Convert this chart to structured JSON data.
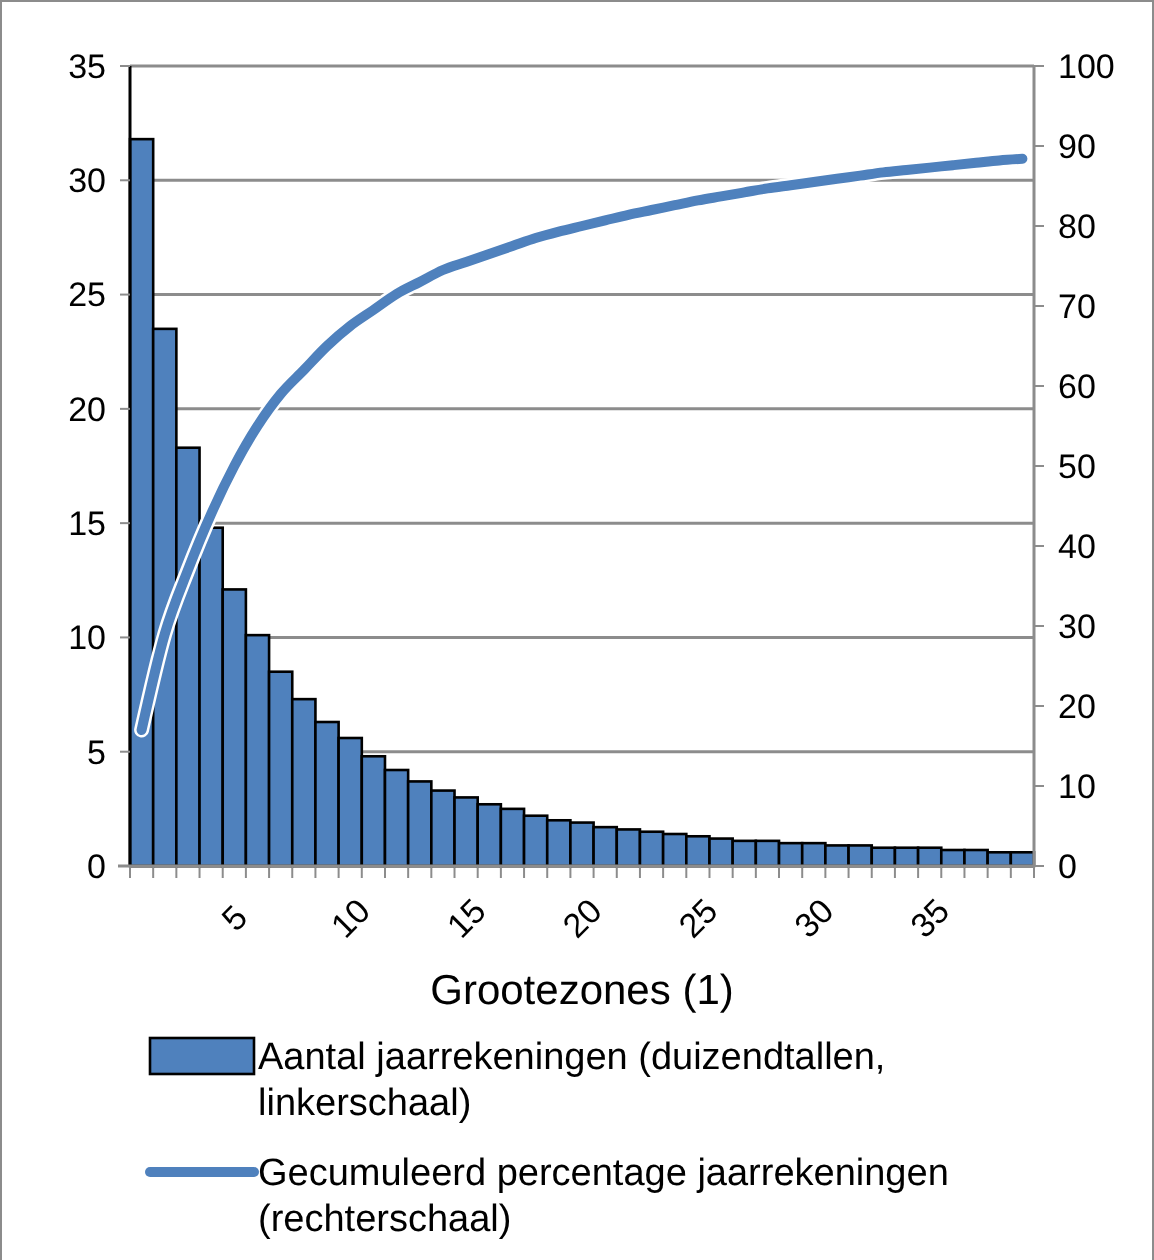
{
  "chart_data": {
    "type": "bar",
    "xlabel": "Grootezones (1)",
    "categories": [
      null,
      null,
      null,
      null,
      "5",
      null,
      null,
      null,
      null,
      "10",
      null,
      null,
      null,
      null,
      "15",
      null,
      null,
      null,
      null,
      "20",
      null,
      null,
      null,
      null,
      "25",
      null,
      null,
      null,
      null,
      "30",
      null,
      null,
      null,
      null,
      "35",
      null,
      null,
      null,
      null
    ],
    "series": [
      {
        "name": "Aantal jaarrekeningen (duizendtallen, linkerschaal)",
        "color": "#4f81bd",
        "values": [
          31.8,
          23.5,
          18.3,
          14.8,
          12.1,
          10.1,
          8.5,
          7.3,
          6.3,
          5.6,
          4.8,
          4.2,
          3.7,
          3.3,
          3.0,
          2.7,
          2.5,
          2.2,
          2.0,
          1.9,
          1.7,
          1.6,
          1.5,
          1.4,
          1.3,
          1.2,
          1.1,
          1.1,
          1.0,
          1.0,
          0.9,
          0.9,
          0.8,
          0.8,
          0.8,
          0.7,
          0.7,
          0.6,
          0.6
        ]
      },
      {
        "name": "Gecumuleerd percentage jaarrekeningen (rechterschaal)",
        "type": "line",
        "axis": "y2",
        "color": "#4f81bd",
        "values": [
          17,
          29,
          37,
          44,
          50,
          55,
          59,
          62,
          65,
          67.5,
          69.5,
          71.5,
          73,
          74.5,
          75.5,
          76.5,
          77.5,
          78.5,
          79.3,
          80,
          80.7,
          81.4,
          82,
          82.6,
          83.2,
          83.7,
          84.2,
          84.7,
          85.1,
          85.5,
          85.9,
          86.3,
          86.7,
          87,
          87.3,
          87.6,
          87.9,
          88.2,
          88.4
        ]
      }
    ],
    "ylim": [
      0,
      35
    ],
    "yticks": [
      0,
      5,
      10,
      15,
      20,
      25,
      30,
      35
    ],
    "y2lim": [
      0,
      100
    ],
    "y2ticks": [
      0,
      10,
      20,
      30,
      40,
      50,
      60,
      70,
      80,
      90,
      100
    ],
    "grid": "y",
    "legend": "bottom",
    "marker": "none",
    "line_style": "solid"
  }
}
